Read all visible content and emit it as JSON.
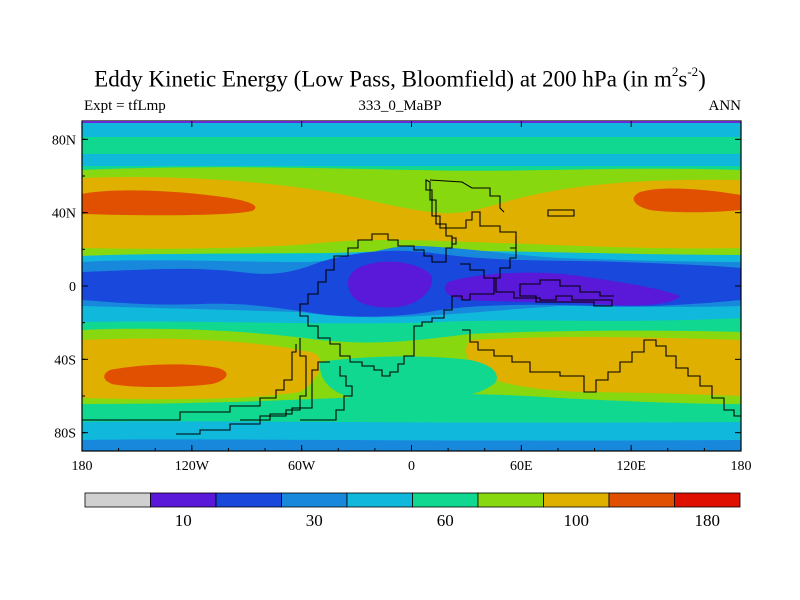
{
  "chart_data": {
    "type": "heatmap",
    "title_main": "Eddy Kinetic Energy (Low Pass, Bloomfield) at 200 hPa (in m",
    "title_sup1": "2",
    "title_mid": "s",
    "title_sup2": "-2",
    "title_end": ")",
    "left_string": "Expt = tfLmp",
    "center_string": "333_0_MaBP",
    "right_string": "ANN",
    "xlim": [
      -180,
      180
    ],
    "ylim": [
      -90,
      90
    ],
    "x_ticks": [
      {
        "value": -180,
        "label": "180"
      },
      {
        "value": -120,
        "label": "120W"
      },
      {
        "value": -60,
        "label": "60W"
      },
      {
        "value": 0,
        "label": "0"
      },
      {
        "value": 60,
        "label": "60E"
      },
      {
        "value": 120,
        "label": "120E"
      },
      {
        "value": 180,
        "label": "180"
      }
    ],
    "y_ticks": [
      {
        "value": 80,
        "label": "80N"
      },
      {
        "value": 40,
        "label": "40N"
      },
      {
        "value": 0,
        "label": "0"
      },
      {
        "value": -40,
        "label": "40S"
      },
      {
        "value": -80,
        "label": "80S"
      }
    ],
    "colorbar": {
      "colors": [
        "#d0d0d0",
        "#5a18d8",
        "#1848dc",
        "#1888dc",
        "#10b8dc",
        "#10d890",
        "#88d810",
        "#e0b000",
        "#e05000",
        "#e01000"
      ],
      "levels": [
        5,
        10,
        20,
        30,
        45,
        60,
        80,
        100,
        140,
        180
      ],
      "labels": [
        {
          "after_box": 1,
          "text": "10"
        },
        {
          "after_box": 3,
          "text": "30"
        },
        {
          "after_box": 5,
          "text": "60"
        },
        {
          "after_box": 7,
          "text": "100"
        },
        {
          "after_box": 9,
          "text": "180"
        }
      ]
    },
    "eke_values": {
      "latitude": [
        90,
        80,
        70,
        60,
        50,
        40,
        30,
        20,
        10,
        0,
        -10,
        -20,
        -30,
        -40,
        -50,
        -60,
        -70,
        -80,
        -90
      ],
      "longitude": [
        -180,
        -120,
        -60,
        0,
        60,
        120,
        180
      ],
      "values_m2s2": [
        [
          45,
          45,
          45,
          45,
          45,
          45,
          45
        ],
        [
          60,
          60,
          60,
          60,
          60,
          60,
          60
        ],
        [
          45,
          45,
          45,
          45,
          45,
          45,
          45
        ],
        [
          60,
          60,
          60,
          80,
          60,
          60,
          60
        ],
        [
          100,
          90,
          80,
          80,
          70,
          100,
          100
        ],
        [
          140,
          110,
          100,
          90,
          80,
          110,
          140
        ],
        [
          100,
          100,
          80,
          80,
          80,
          100,
          100
        ],
        [
          80,
          60,
          45,
          45,
          45,
          60,
          80
        ],
        [
          45,
          30,
          20,
          20,
          20,
          30,
          45
        ],
        [
          30,
          20,
          10,
          10,
          10,
          20,
          30
        ],
        [
          45,
          30,
          20,
          20,
          10,
          20,
          45
        ],
        [
          60,
          60,
          45,
          30,
          30,
          45,
          60
        ],
        [
          80,
          80,
          60,
          60,
          80,
          80,
          80
        ],
        [
          100,
          100,
          80,
          60,
          100,
          100,
          100
        ],
        [
          140,
          100,
          80,
          60,
          80,
          100,
          140
        ],
        [
          100,
          80,
          60,
          60,
          60,
          80,
          100
        ],
        [
          45,
          45,
          45,
          45,
          45,
          45,
          45
        ],
        [
          30,
          30,
          30,
          30,
          30,
          30,
          30
        ],
        [
          20,
          20,
          20,
          20,
          20,
          20,
          20
        ]
      ]
    },
    "grid": false,
    "continent_outlines": true
  }
}
